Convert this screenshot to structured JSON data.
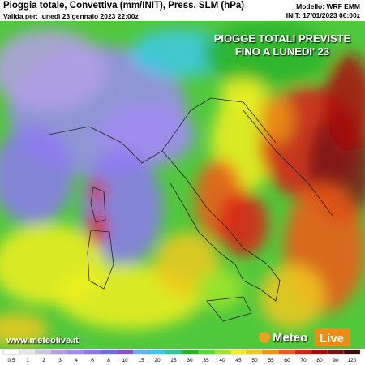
{
  "header": {
    "title": "Pioggia totale, Convettiva (mm/INIT), Press. SLM (hPa)",
    "valid": "Valida per: lunedì 23 gennaio 2023 22:00z",
    "model": "Modello: WRF EMM",
    "init": "INIT: 17/01/2023 06:00z"
  },
  "overlay": {
    "lines": [
      "PIOGGE TOTALI PREVISTE",
      "FINO A LUNEDI' 23"
    ]
  },
  "watermark": "www.meteolive.it",
  "logo": {
    "left": "Meteo",
    "right": "Live"
  },
  "legend": {
    "ticks": [
      "0.5",
      "1",
      "2",
      "3",
      "4",
      "6",
      "8",
      "10",
      "15",
      "20",
      "25",
      "30",
      "35",
      "40",
      "45",
      "50",
      "55",
      "60",
      "70",
      "80",
      "90",
      "120"
    ],
    "colors": [
      "#ffffff",
      "#e6e6e6",
      "#c8c8dc",
      "#b4a0dc",
      "#a08cf0",
      "#8c78f0",
      "#6e6ee6",
      "#8c50c8",
      "#64b4f0",
      "#3cc8e6",
      "#28c8a0",
      "#28b428",
      "#50dc28",
      "#a0e628",
      "#f0f01e",
      "#f0c81e",
      "#f09614",
      "#f05a14",
      "#dc1e14",
      "#aa0a0a",
      "#781414",
      "#3c0a0a"
    ]
  }
}
